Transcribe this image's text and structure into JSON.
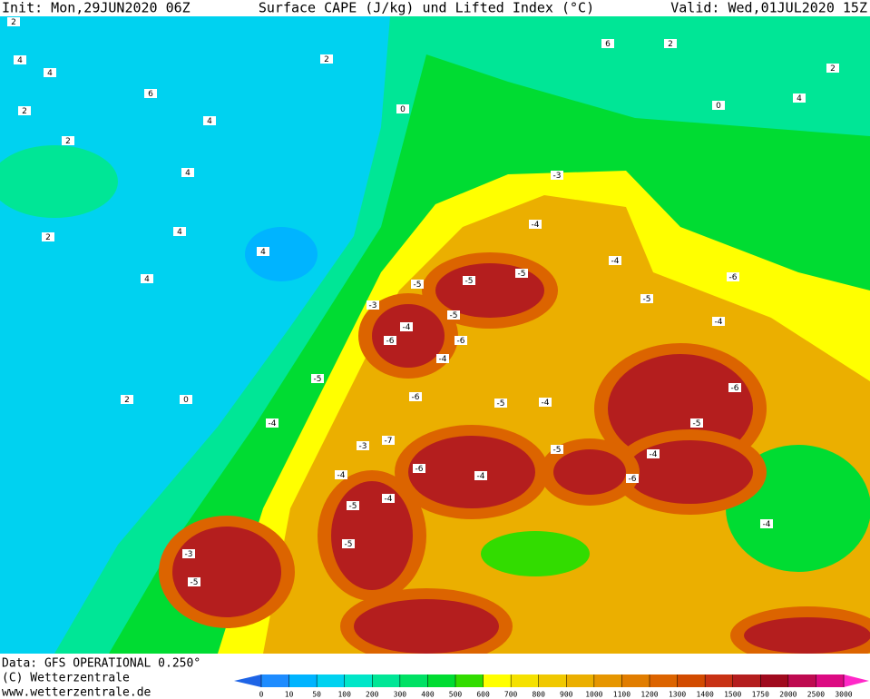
{
  "header": {
    "init": "Init: Mon,29JUN2020 06Z",
    "title": "Surface CAPE (J/kg) und Lifted Index (°C)",
    "valid": "Valid: Wed,01JUL2020 15Z"
  },
  "footer": {
    "data": "Data: GFS OPERATIONAL 0.250°",
    "copyright": "(C) Wetterzentrale",
    "url": "www.wetterzentrale.de"
  },
  "colorbar": {
    "ticks": [
      0,
      10,
      50,
      100,
      200,
      300,
      400,
      500,
      600,
      700,
      800,
      900,
      1000,
      1100,
      1200,
      1300,
      1400,
      1500,
      1750,
      2000,
      2500,
      3000
    ],
    "colors": [
      "#1e8cff",
      "#00b4ff",
      "#00d2f0",
      "#00e6c8",
      "#00e696",
      "#00e164",
      "#00dc32",
      "#32dc00",
      "#ffff00",
      "#f5e100",
      "#f0c800",
      "#ebaf00",
      "#e69600",
      "#e17d00",
      "#dc6400",
      "#d24b00",
      "#c83214",
      "#b41e1e",
      "#a00a1e",
      "#be0a50",
      "#dc0a82"
    ],
    "under_color": "#1e64e6",
    "over_color": "#ff28c8"
  },
  "map": {
    "lifted_index_labels": [
      "2",
      "4",
      "4",
      "2",
      "2",
      "6",
      "4",
      "2",
      "4",
      "4",
      "2",
      "4",
      "4",
      "2",
      "0",
      "2",
      "6",
      "2",
      "0",
      "4",
      "0",
      "-3",
      "-5",
      "-4",
      "-5",
      "-3",
      "-5",
      "-4",
      "-5",
      "-6",
      "-4",
      "-5",
      "-4",
      "-6",
      "-6",
      "-4",
      "-5",
      "-6",
      "-7",
      "-5",
      "-4",
      "-6",
      "-5",
      "-4",
      "-6",
      "-5",
      "-4",
      "-3",
      "-4",
      "-5",
      "-4",
      "-6",
      "-5",
      "-4",
      "-3",
      "-5",
      "-4"
    ]
  }
}
